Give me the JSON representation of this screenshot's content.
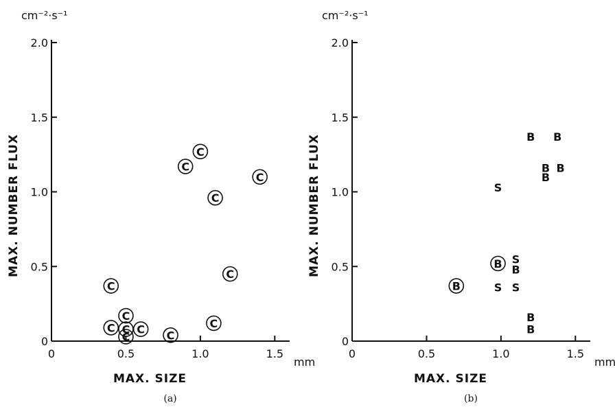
{
  "chart_data": [
    {
      "type": "scatter",
      "panel_caption": "(a)",
      "xlabel": "MAX. SIZE",
      "ylabel": "MAX. NUMBER FLUX",
      "x_unit": "mm",
      "y_unit": "cm⁻²·s⁻¹",
      "xlim": [
        0,
        1.6
      ],
      "ylim": [
        0,
        2.0
      ],
      "x_ticks": [
        "0",
        "0.5",
        "1.0",
        "1.5"
      ],
      "y_ticks": [
        "0",
        "0.5",
        "1.0",
        "1.5",
        "2.0"
      ],
      "grid": false,
      "series": [
        {
          "name": "C",
          "marker": "C",
          "circled": true,
          "points": [
            {
              "x": 0.4,
              "y": 0.37
            },
            {
              "x": 0.4,
              "y": 0.09
            },
            {
              "x": 0.5,
              "y": 0.17
            },
            {
              "x": 0.5,
              "y": 0.08
            },
            {
              "x": 0.5,
              "y": 0.03
            },
            {
              "x": 0.6,
              "y": 0.08
            },
            {
              "x": 0.8,
              "y": 0.04
            },
            {
              "x": 0.9,
              "y": 1.17
            },
            {
              "x": 1.0,
              "y": 1.27
            },
            {
              "x": 1.1,
              "y": 0.96
            },
            {
              "x": 1.09,
              "y": 0.12
            },
            {
              "x": 1.2,
              "y": 0.45
            },
            {
              "x": 1.4,
              "y": 1.1
            }
          ]
        }
      ]
    },
    {
      "type": "scatter",
      "panel_caption": "(b)",
      "xlabel": "MAX. SIZE",
      "ylabel": "MAX. NUMBER FLUX",
      "x_unit": "mm",
      "y_unit": "cm⁻²·s⁻¹",
      "xlim": [
        0,
        1.6
      ],
      "ylim": [
        0,
        2.0
      ],
      "x_ticks": [
        "0",
        "0.5",
        "1.0",
        "1.5"
      ],
      "y_ticks": [
        "0",
        "0.5",
        "1.0",
        "1.5",
        "2.0"
      ],
      "grid": false,
      "series": [
        {
          "name": "B",
          "marker": "B",
          "points": [
            {
              "x": 1.2,
              "y": 1.37,
              "circled": false
            },
            {
              "x": 1.38,
              "y": 1.37,
              "circled": false
            },
            {
              "x": 1.3,
              "y": 1.16,
              "circled": false
            },
            {
              "x": 1.3,
              "y": 1.1,
              "circled": false
            },
            {
              "x": 1.4,
              "y": 1.16,
              "circled": false
            },
            {
              "x": 1.1,
              "y": 0.48,
              "circled": false
            },
            {
              "x": 1.2,
              "y": 0.16,
              "circled": false
            },
            {
              "x": 1.2,
              "y": 0.08,
              "circled": false
            },
            {
              "x": 0.98,
              "y": 0.52,
              "circled": true
            },
            {
              "x": 0.7,
              "y": 0.37,
              "circled": true
            }
          ]
        },
        {
          "name": "S",
          "marker": "S",
          "points": [
            {
              "x": 0.98,
              "y": 1.03,
              "circled": false
            },
            {
              "x": 1.1,
              "y": 0.55,
              "circled": false
            },
            {
              "x": 0.98,
              "y": 0.36,
              "circled": false
            },
            {
              "x": 1.1,
              "y": 0.36,
              "circled": false
            }
          ]
        }
      ]
    }
  ]
}
